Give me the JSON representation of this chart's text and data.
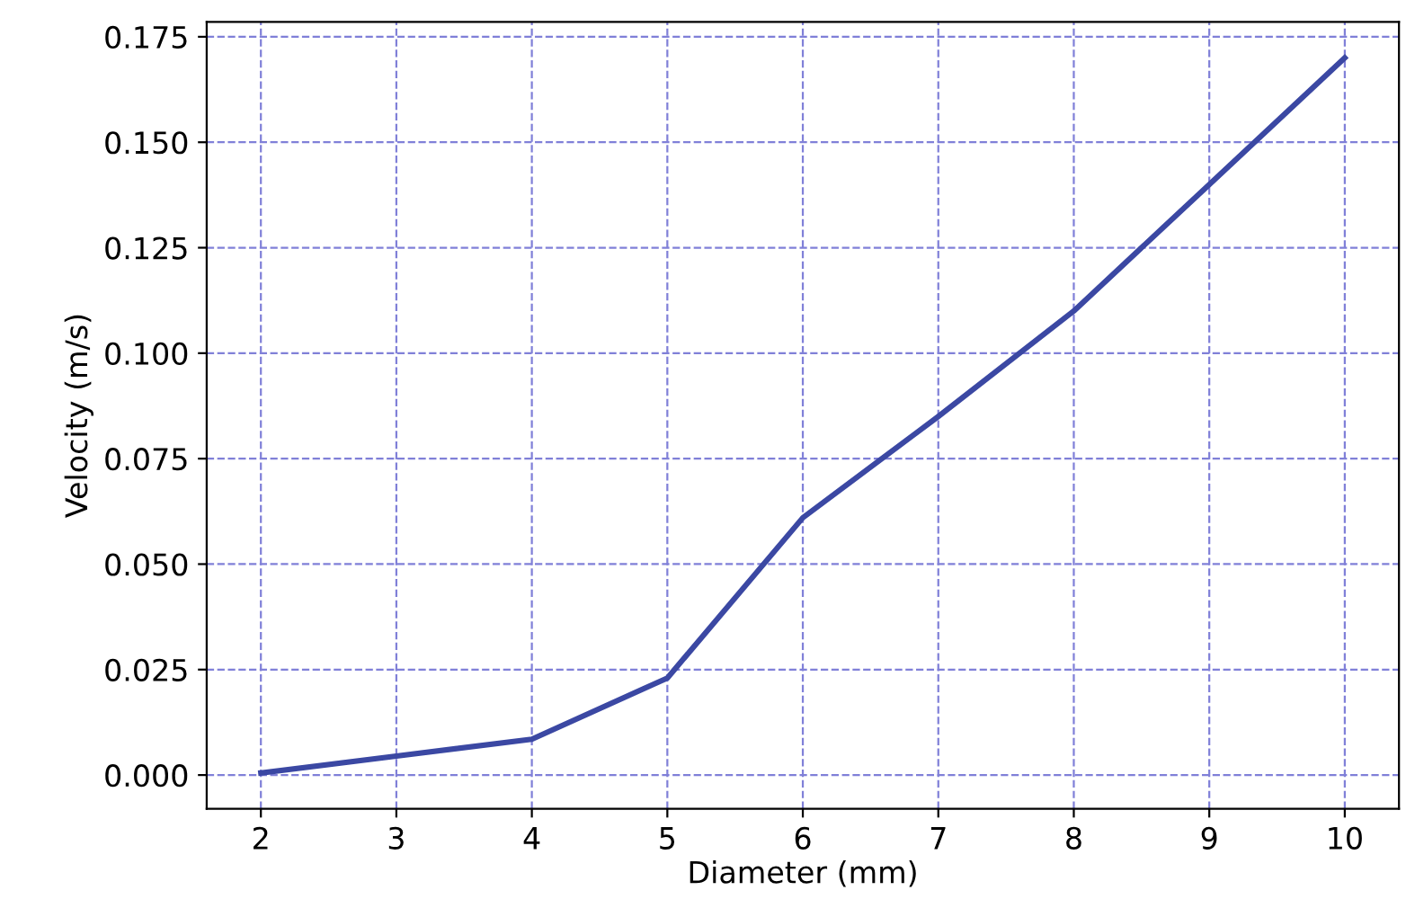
{
  "chart_data": {
    "type": "line",
    "xlabel": "Diameter (mm)",
    "ylabel": "Velocity (m/s)",
    "x": [
      2,
      3,
      4,
      5,
      6,
      7,
      8,
      9,
      10
    ],
    "series": [
      {
        "color": "#3b48a3",
        "values": [
          0.0005,
          0.0045,
          0.0085,
          0.023,
          0.061,
          0.085,
          0.11,
          0.14,
          0.17
        ]
      }
    ],
    "xlim": [
      1.6,
      10.4
    ],
    "xticks": [
      2,
      3,
      4,
      5,
      6,
      7,
      8,
      9,
      10
    ],
    "ylim": [
      -0.008,
      0.1785
    ],
    "yticks": [
      {
        "value": 0,
        "label": "0.000"
      },
      {
        "value": 0.025,
        "label": "0.025"
      },
      {
        "value": 0.05,
        "label": "0.050"
      },
      {
        "value": 0.075,
        "label": "0.075"
      },
      {
        "value": 0.1,
        "label": "0.100"
      },
      {
        "value": 0.125,
        "label": "0.125"
      },
      {
        "value": 0.15,
        "label": "0.150"
      },
      {
        "value": 0.175,
        "label": "0.175"
      }
    ],
    "grid": true,
    "marker": "none"
  }
}
